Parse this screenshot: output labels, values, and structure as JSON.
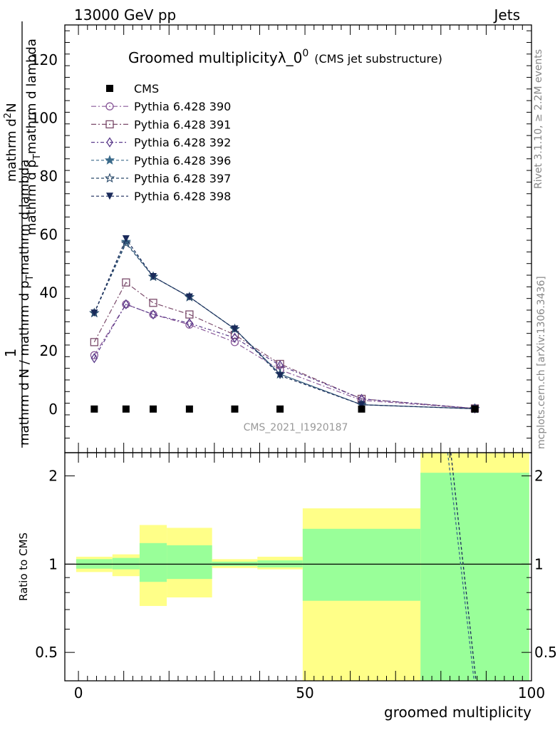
{
  "header": {
    "left": "13000 GeV pp",
    "right": "Jets"
  },
  "side_labels": {
    "rivet": "Rivet 3.1.10, ≥ 2.2M events",
    "mcplots": "mcplots.cern.ch [arXiv:1306.3436]"
  },
  "colors": {
    "green_band": "#99ff99",
    "yellow_band": "#ffff88",
    "data_marker": "#000000"
  },
  "chart_data": [
    {
      "type": "line",
      "title": "Groomed multiplicityλ_0",
      "title_sup": "0",
      "title_note": "(CMS jet substructure)",
      "ylabel_num": "1",
      "ylabel_num_tail": "mathrm d²N",
      "ylabel_num_tail2": "mathrm d p_T mathrm d lambda",
      "ylabel_den": "mathrm d N / mathrm d p_T mathrm d p_T mathrm d lambda",
      "ylabel_left": "1",
      "ylabel_left_tail": "mathrm d N / mathrm d p",
      "ylabel_left_sub": "T",
      "ylabel_right": "mathrm d",
      "ylabel_right_sub": "2",
      "ylabel_right_tail": "N",
      "ylabel_right2": "mathrm d p",
      "ylabel_right2_sub": "T",
      "ylabel_right2_tail": "mathrm d lambda",
      "watermark": "CMS_2021_I1920187",
      "xlim": [
        -3,
        100
      ],
      "ylim": [
        -15,
        132
      ],
      "yticks": [
        0,
        20,
        40,
        60,
        80,
        100,
        120
      ],
      "ytick_labels": [
        "0",
        "20",
        "40",
        "60",
        "80",
        "100",
        "120"
      ],
      "legend_position": "top-left",
      "data": {
        "name": "CMS",
        "x": [
          3.5,
          10.5,
          16.5,
          24.5,
          34.5,
          44.5,
          62.5,
          87.5
        ],
        "y": [
          0,
          0,
          0,
          0,
          0,
          0,
          0,
          0
        ]
      },
      "series": [
        {
          "name": "Pythia 6.428 390",
          "color": "#8a5a9a",
          "marker": "circle",
          "dash": "7,3,2,3",
          "x": [
            3.5,
            10.5,
            16.5,
            24.5,
            34.5,
            44.5,
            62.5,
            87.5
          ],
          "y": [
            18.5,
            36.0,
            32.5,
            29.0,
            23.0,
            13.5,
            3.0,
            0.2
          ]
        },
        {
          "name": "Pythia 6.428 391",
          "color": "#7a4a6a",
          "marker": "square",
          "dash": "7,3,2,3",
          "x": [
            3.5,
            10.5,
            16.5,
            24.5,
            34.5,
            44.5,
            62.5,
            87.5
          ],
          "y": [
            23.0,
            43.5,
            36.5,
            32.5,
            25.5,
            15.5,
            3.5,
            0.2
          ]
        },
        {
          "name": "Pythia 6.428 392",
          "color": "#5a3a8a",
          "marker": "diamond",
          "dash": "5,3,2,3",
          "x": [
            3.5,
            10.5,
            16.5,
            24.5,
            34.5,
            44.5,
            62.5,
            87.5
          ],
          "y": [
            17.5,
            36.0,
            32.5,
            29.5,
            24.5,
            15.0,
            3.5,
            0.2
          ]
        },
        {
          "name": "Pythia 6.428 396",
          "color": "#3a6a8a",
          "marker": "star",
          "dash": "4,3",
          "x": [
            3.5,
            10.5,
            16.5,
            24.5,
            34.5,
            44.5,
            62.5,
            87.5
          ],
          "y": [
            33.0,
            57.5,
            45.5,
            38.5,
            27.5,
            12.0,
            1.5,
            0.1
          ]
        },
        {
          "name": "Pythia 6.428 397",
          "color": "#2a4a6a",
          "marker": "star-open",
          "dash": "4,3",
          "x": [
            3.5,
            10.5,
            16.5,
            24.5,
            34.5,
            44.5,
            62.5,
            87.5
          ],
          "y": [
            33.0,
            57.0,
            45.5,
            38.5,
            27.5,
            12.0,
            1.5,
            0.1
          ]
        },
        {
          "name": "Pythia 6.428 398",
          "color": "#1a2a5a",
          "marker": "triangle-down",
          "dash": "4,3",
          "x": [
            3.5,
            10.5,
            16.5,
            24.5,
            34.5,
            44.5,
            62.5,
            87.5
          ],
          "y": [
            33.0,
            58.5,
            45.5,
            38.5,
            27.5,
            11.5,
            1.5,
            0.1
          ]
        }
      ]
    },
    {
      "type": "area",
      "ylabel": "Ratio to CMS",
      "xlabel": "groomed multiplicity",
      "xlim": [
        -3,
        100
      ],
      "ylim": [
        0.4,
        2.4
      ],
      "yticks": [
        0.5,
        1,
        2
      ],
      "ytick_labels": [
        "0.5",
        "1",
        "2"
      ],
      "xticks": [
        0,
        50,
        100
      ],
      "xtick_labels": [
        "0",
        "50",
        "100"
      ],
      "bands": [
        {
          "x0": -0.5,
          "x1": 7.5,
          "green": [
            0.965,
            1.04
          ],
          "yellow": [
            0.94,
            1.06
          ]
        },
        {
          "x0": 7.5,
          "x1": 13.5,
          "green": [
            0.96,
            1.05
          ],
          "yellow": [
            0.91,
            1.08
          ]
        },
        {
          "x0": 13.5,
          "x1": 19.5,
          "green": [
            0.87,
            1.18
          ],
          "yellow": [
            0.72,
            1.36
          ]
        },
        {
          "x0": 19.5,
          "x1": 29.5,
          "green": [
            0.89,
            1.16
          ],
          "yellow": [
            0.77,
            1.33
          ]
        },
        {
          "x0": 29.5,
          "x1": 39.5,
          "green": [
            0.985,
            1.02
          ],
          "yellow": [
            0.97,
            1.04
          ]
        },
        {
          "x0": 39.5,
          "x1": 49.5,
          "green": [
            0.975,
            1.03
          ],
          "yellow": [
            0.96,
            1.06
          ]
        },
        {
          "x0": 49.5,
          "x1": 75.5,
          "green": [
            0.75,
            1.32
          ],
          "yellow": [
            0.38,
            1.55
          ]
        },
        {
          "x0": 75.5,
          "x1": 99.5,
          "green": [
            0.38,
            2.05
          ],
          "yellow": [
            0.38,
            2.4
          ]
        }
      ],
      "ratio_lines": [
        {
          "color": "#3a6a8a",
          "x": [
            81.5,
            87.5
          ],
          "y": [
            2.4,
            0.38
          ]
        },
        {
          "color": "#1a2a5a",
          "x": [
            82.2,
            87.9
          ],
          "y": [
            2.4,
            0.38
          ]
        }
      ]
    }
  ]
}
